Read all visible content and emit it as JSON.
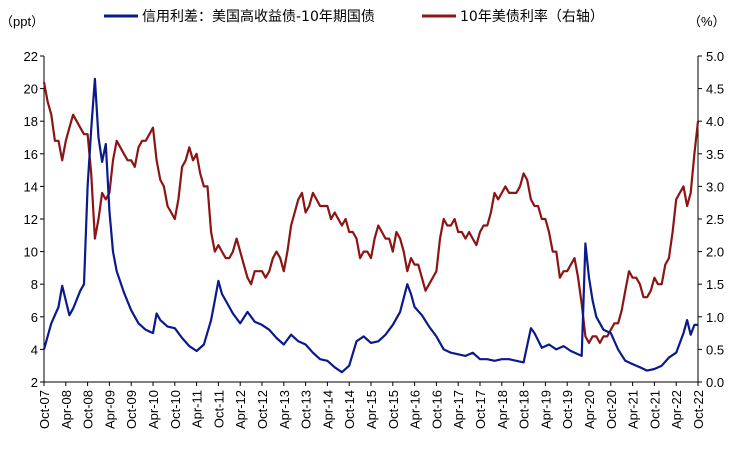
{
  "chart_data": {
    "type": "line",
    "left_axis": {
      "label": "（ppt）",
      "min": 2,
      "max": 22,
      "ticks": [
        2,
        4,
        6,
        8,
        10,
        12,
        14,
        16,
        18,
        20,
        22
      ]
    },
    "right_axis": {
      "label": "（%）",
      "min": 0.0,
      "max": 5.0,
      "ticks": [
        "0.0",
        "0.5",
        "1.0",
        "1.5",
        "2.0",
        "2.5",
        "3.0",
        "3.5",
        "4.0",
        "4.5",
        "5.0"
      ]
    },
    "x_axis": {
      "start": "Oct-07",
      "end": "Oct-22",
      "tick_labels": [
        "Oct-07",
        "Apr-08",
        "Oct-08",
        "Apr-09",
        "Oct-09",
        "Apr-10",
        "Oct-10",
        "Apr-11",
        "Oct-11",
        "Apr-12",
        "Oct-12",
        "Apr-13",
        "Oct-13",
        "Apr-14",
        "Oct-14",
        "Apr-15",
        "Oct-15",
        "Apr-16",
        "Oct-16",
        "Apr-17",
        "Oct-17",
        "Apr-18",
        "Oct-18",
        "Apr-19",
        "Oct-19",
        "Apr-20",
        "Oct-20",
        "Apr-21",
        "Oct-21",
        "Apr-22",
        "Oct-22"
      ]
    },
    "grid": false,
    "legend_position": "top",
    "series": [
      {
        "name": "信用利差：美国高收益债-10年期国债",
        "axis": "left",
        "color": "#0a1a8c",
        "points": [
          [
            "2007-10",
            4.0
          ],
          [
            "2007-12",
            5.6
          ],
          [
            "2008-02",
            6.6
          ],
          [
            "2008-03",
            7.9
          ],
          [
            "2008-05",
            6.1
          ],
          [
            "2008-06",
            6.5
          ],
          [
            "2008-08",
            7.6
          ],
          [
            "2008-09",
            8.0
          ],
          [
            "2008-10",
            14.0
          ],
          [
            "2008-11",
            17.5
          ],
          [
            "2008-12",
            20.6
          ],
          [
            "2009-01",
            17.0
          ],
          [
            "2009-02",
            15.5
          ],
          [
            "2009-03",
            16.6
          ],
          [
            "2009-04",
            12.5
          ],
          [
            "2009-05",
            10.0
          ],
          [
            "2009-06",
            8.8
          ],
          [
            "2009-08",
            7.5
          ],
          [
            "2009-10",
            6.4
          ],
          [
            "2009-12",
            5.6
          ],
          [
            "2010-02",
            5.2
          ],
          [
            "2010-04",
            5.0
          ],
          [
            "2010-05",
            6.2
          ],
          [
            "2010-06",
            5.8
          ],
          [
            "2010-08",
            5.4
          ],
          [
            "2010-10",
            5.3
          ],
          [
            "2010-12",
            4.7
          ],
          [
            "2011-02",
            4.2
          ],
          [
            "2011-04",
            3.9
          ],
          [
            "2011-06",
            4.3
          ],
          [
            "2011-08",
            5.8
          ],
          [
            "2011-09",
            7.0
          ],
          [
            "2011-10",
            8.2
          ],
          [
            "2011-11",
            7.4
          ],
          [
            "2011-12",
            7.0
          ],
          [
            "2012-02",
            6.2
          ],
          [
            "2012-04",
            5.6
          ],
          [
            "2012-06",
            6.3
          ],
          [
            "2012-08",
            5.7
          ],
          [
            "2012-10",
            5.5
          ],
          [
            "2012-12",
            5.2
          ],
          [
            "2013-02",
            4.7
          ],
          [
            "2013-04",
            4.3
          ],
          [
            "2013-06",
            4.9
          ],
          [
            "2013-08",
            4.5
          ],
          [
            "2013-10",
            4.3
          ],
          [
            "2013-12",
            3.8
          ],
          [
            "2014-02",
            3.4
          ],
          [
            "2014-04",
            3.3
          ],
          [
            "2014-06",
            2.9
          ],
          [
            "2014-08",
            2.6
          ],
          [
            "2014-10",
            3.0
          ],
          [
            "2014-12",
            4.5
          ],
          [
            "2015-02",
            4.8
          ],
          [
            "2015-04",
            4.4
          ],
          [
            "2015-06",
            4.5
          ],
          [
            "2015-08",
            4.9
          ],
          [
            "2015-10",
            5.5
          ],
          [
            "2015-12",
            6.3
          ],
          [
            "2016-02",
            8.0
          ],
          [
            "2016-03",
            7.4
          ],
          [
            "2016-04",
            6.6
          ],
          [
            "2016-06",
            6.1
          ],
          [
            "2016-08",
            5.4
          ],
          [
            "2016-10",
            4.8
          ],
          [
            "2016-12",
            4.0
          ],
          [
            "2017-02",
            3.8
          ],
          [
            "2017-04",
            3.7
          ],
          [
            "2017-06",
            3.6
          ],
          [
            "2017-08",
            3.8
          ],
          [
            "2017-10",
            3.4
          ],
          [
            "2017-12",
            3.4
          ],
          [
            "2018-02",
            3.3
          ],
          [
            "2018-04",
            3.4
          ],
          [
            "2018-06",
            3.4
          ],
          [
            "2018-08",
            3.3
          ],
          [
            "2018-10",
            3.2
          ],
          [
            "2018-12",
            5.3
          ],
          [
            "2019-01",
            5.0
          ],
          [
            "2019-03",
            4.1
          ],
          [
            "2019-05",
            4.3
          ],
          [
            "2019-07",
            4.0
          ],
          [
            "2019-09",
            4.2
          ],
          [
            "2019-11",
            3.9
          ],
          [
            "2020-01",
            3.7
          ],
          [
            "2020-02",
            3.6
          ],
          [
            "2020-03",
            10.5
          ],
          [
            "2020-04",
            8.4
          ],
          [
            "2020-05",
            7.0
          ],
          [
            "2020-06",
            6.0
          ],
          [
            "2020-08",
            5.2
          ],
          [
            "2020-10",
            5.0
          ],
          [
            "2020-12",
            4.0
          ],
          [
            "2021-02",
            3.3
          ],
          [
            "2021-04",
            3.1
          ],
          [
            "2021-06",
            2.9
          ],
          [
            "2021-08",
            2.7
          ],
          [
            "2021-10",
            2.8
          ],
          [
            "2021-12",
            3.0
          ],
          [
            "2022-02",
            3.5
          ],
          [
            "2022-04",
            3.8
          ],
          [
            "2022-06",
            5.0
          ],
          [
            "2022-07",
            5.8
          ],
          [
            "2022-08",
            4.9
          ],
          [
            "2022-09",
            5.5
          ],
          [
            "2022-10",
            5.5
          ]
        ]
      },
      {
        "name": "10年美债利率（右轴）",
        "axis": "right",
        "color": "#8c1414",
        "points": [
          [
            "2007-10",
            4.6
          ],
          [
            "2007-11",
            4.3
          ],
          [
            "2007-12",
            4.1
          ],
          [
            "2008-01",
            3.7
          ],
          [
            "2008-02",
            3.7
          ],
          [
            "2008-03",
            3.4
          ],
          [
            "2008-04",
            3.7
          ],
          [
            "2008-05",
            3.9
          ],
          [
            "2008-06",
            4.1
          ],
          [
            "2008-07",
            4.0
          ],
          [
            "2008-08",
            3.9
          ],
          [
            "2008-09",
            3.8
          ],
          [
            "2008-10",
            3.8
          ],
          [
            "2008-11",
            3.2
          ],
          [
            "2008-12",
            2.2
          ],
          [
            "2009-01",
            2.5
          ],
          [
            "2009-02",
            2.9
          ],
          [
            "2009-03",
            2.8
          ],
          [
            "2009-04",
            2.9
          ],
          [
            "2009-05",
            3.4
          ],
          [
            "2009-06",
            3.7
          ],
          [
            "2009-07",
            3.6
          ],
          [
            "2009-08",
            3.5
          ],
          [
            "2009-09",
            3.4
          ],
          [
            "2009-10",
            3.4
          ],
          [
            "2009-11",
            3.3
          ],
          [
            "2009-12",
            3.6
          ],
          [
            "2010-01",
            3.7
          ],
          [
            "2010-02",
            3.7
          ],
          [
            "2010-03",
            3.8
          ],
          [
            "2010-04",
            3.9
          ],
          [
            "2010-05",
            3.4
          ],
          [
            "2010-06",
            3.1
          ],
          [
            "2010-07",
            3.0
          ],
          [
            "2010-08",
            2.7
          ],
          [
            "2010-09",
            2.6
          ],
          [
            "2010-10",
            2.5
          ],
          [
            "2010-11",
            2.8
          ],
          [
            "2010-12",
            3.3
          ],
          [
            "2011-01",
            3.4
          ],
          [
            "2011-02",
            3.6
          ],
          [
            "2011-03",
            3.4
          ],
          [
            "2011-04",
            3.5
          ],
          [
            "2011-05",
            3.2
          ],
          [
            "2011-06",
            3.0
          ],
          [
            "2011-07",
            3.0
          ],
          [
            "2011-08",
            2.3
          ],
          [
            "2011-09",
            2.0
          ],
          [
            "2011-10",
            2.1
          ],
          [
            "2011-11",
            2.0
          ],
          [
            "2011-12",
            1.9
          ],
          [
            "2012-01",
            1.9
          ],
          [
            "2012-02",
            2.0
          ],
          [
            "2012-03",
            2.2
          ],
          [
            "2012-04",
            2.0
          ],
          [
            "2012-05",
            1.8
          ],
          [
            "2012-06",
            1.6
          ],
          [
            "2012-07",
            1.5
          ],
          [
            "2012-08",
            1.7
          ],
          [
            "2012-09",
            1.7
          ],
          [
            "2012-10",
            1.7
          ],
          [
            "2012-11",
            1.6
          ],
          [
            "2012-12",
            1.7
          ],
          [
            "2013-01",
            1.9
          ],
          [
            "2013-02",
            2.0
          ],
          [
            "2013-03",
            1.9
          ],
          [
            "2013-04",
            1.7
          ],
          [
            "2013-05",
            2.0
          ],
          [
            "2013-06",
            2.4
          ],
          [
            "2013-07",
            2.6
          ],
          [
            "2013-08",
            2.8
          ],
          [
            "2013-09",
            2.9
          ],
          [
            "2013-10",
            2.6
          ],
          [
            "2013-11",
            2.7
          ],
          [
            "2013-12",
            2.9
          ],
          [
            "2014-01",
            2.8
          ],
          [
            "2014-02",
            2.7
          ],
          [
            "2014-03",
            2.7
          ],
          [
            "2014-04",
            2.7
          ],
          [
            "2014-05",
            2.5
          ],
          [
            "2014-06",
            2.6
          ],
          [
            "2014-07",
            2.5
          ],
          [
            "2014-08",
            2.4
          ],
          [
            "2014-09",
            2.5
          ],
          [
            "2014-10",
            2.3
          ],
          [
            "2014-11",
            2.3
          ],
          [
            "2014-12",
            2.2
          ],
          [
            "2015-01",
            1.9
          ],
          [
            "2015-02",
            2.0
          ],
          [
            "2015-03",
            2.0
          ],
          [
            "2015-04",
            1.9
          ],
          [
            "2015-05",
            2.2
          ],
          [
            "2015-06",
            2.4
          ],
          [
            "2015-07",
            2.3
          ],
          [
            "2015-08",
            2.2
          ],
          [
            "2015-09",
            2.2
          ],
          [
            "2015-10",
            2.0
          ],
          [
            "2015-11",
            2.3
          ],
          [
            "2015-12",
            2.2
          ],
          [
            "2016-01",
            2.0
          ],
          [
            "2016-02",
            1.7
          ],
          [
            "2016-03",
            1.9
          ],
          [
            "2016-04",
            1.8
          ],
          [
            "2016-05",
            1.8
          ],
          [
            "2016-06",
            1.6
          ],
          [
            "2016-07",
            1.4
          ],
          [
            "2016-08",
            1.5
          ],
          [
            "2016-09",
            1.6
          ],
          [
            "2016-10",
            1.7
          ],
          [
            "2016-11",
            2.2
          ],
          [
            "2016-12",
            2.5
          ],
          [
            "2017-01",
            2.4
          ],
          [
            "2017-02",
            2.4
          ],
          [
            "2017-03",
            2.5
          ],
          [
            "2017-04",
            2.3
          ],
          [
            "2017-05",
            2.3
          ],
          [
            "2017-06",
            2.2
          ],
          [
            "2017-07",
            2.3
          ],
          [
            "2017-08",
            2.2
          ],
          [
            "2017-09",
            2.1
          ],
          [
            "2017-10",
            2.3
          ],
          [
            "2017-11",
            2.4
          ],
          [
            "2017-12",
            2.4
          ],
          [
            "2018-01",
            2.6
          ],
          [
            "2018-02",
            2.9
          ],
          [
            "2018-03",
            2.8
          ],
          [
            "2018-04",
            2.9
          ],
          [
            "2018-05",
            3.0
          ],
          [
            "2018-06",
            2.9
          ],
          [
            "2018-07",
            2.9
          ],
          [
            "2018-08",
            2.9
          ],
          [
            "2018-09",
            3.0
          ],
          [
            "2018-10",
            3.2
          ],
          [
            "2018-11",
            3.1
          ],
          [
            "2018-12",
            2.8
          ],
          [
            "2019-01",
            2.7
          ],
          [
            "2019-02",
            2.7
          ],
          [
            "2019-03",
            2.5
          ],
          [
            "2019-04",
            2.5
          ],
          [
            "2019-05",
            2.3
          ],
          [
            "2019-06",
            2.0
          ],
          [
            "2019-07",
            2.0
          ],
          [
            "2019-08",
            1.6
          ],
          [
            "2019-09",
            1.7
          ],
          [
            "2019-10",
            1.7
          ],
          [
            "2019-11",
            1.8
          ],
          [
            "2019-12",
            1.9
          ],
          [
            "2020-01",
            1.6
          ],
          [
            "2020-02",
            1.2
          ],
          [
            "2020-03",
            0.7
          ],
          [
            "2020-04",
            0.6
          ],
          [
            "2020-05",
            0.7
          ],
          [
            "2020-06",
            0.7
          ],
          [
            "2020-07",
            0.6
          ],
          [
            "2020-08",
            0.7
          ],
          [
            "2020-09",
            0.7
          ],
          [
            "2020-10",
            0.8
          ],
          [
            "2020-11",
            0.9
          ],
          [
            "2020-12",
            0.9
          ],
          [
            "2021-01",
            1.1
          ],
          [
            "2021-02",
            1.4
          ],
          [
            "2021-03",
            1.7
          ],
          [
            "2021-04",
            1.6
          ],
          [
            "2021-05",
            1.6
          ],
          [
            "2021-06",
            1.5
          ],
          [
            "2021-07",
            1.3
          ],
          [
            "2021-08",
            1.3
          ],
          [
            "2021-09",
            1.4
          ],
          [
            "2021-10",
            1.6
          ],
          [
            "2021-11",
            1.5
          ],
          [
            "2021-12",
            1.5
          ],
          [
            "2022-01",
            1.8
          ],
          [
            "2022-02",
            1.9
          ],
          [
            "2022-03",
            2.3
          ],
          [
            "2022-04",
            2.8
          ],
          [
            "2022-05",
            2.9
          ],
          [
            "2022-06",
            3.0
          ],
          [
            "2022-07",
            2.7
          ],
          [
            "2022-08",
            2.9
          ],
          [
            "2022-09",
            3.5
          ],
          [
            "2022-10",
            4.0
          ]
        ]
      }
    ]
  }
}
